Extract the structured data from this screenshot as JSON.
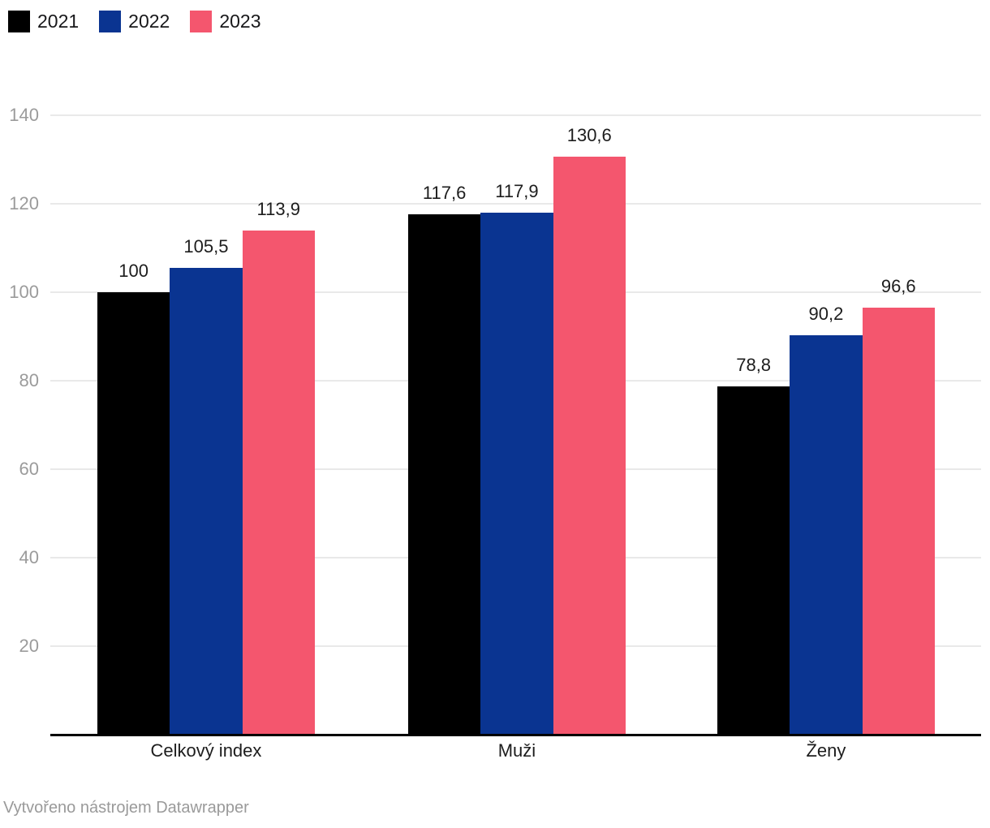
{
  "chart_data": {
    "type": "bar",
    "categories": [
      "Celkový index",
      "Muži",
      "Ženy"
    ],
    "series": [
      {
        "name": "2021",
        "color": "#000000",
        "values": [
          100,
          117.6,
          78.8
        ]
      },
      {
        "name": "2022",
        "color": "#0a3491",
        "values": [
          105.5,
          117.9,
          90.2
        ]
      },
      {
        "name": "2023",
        "color": "#f4566e",
        "values": [
          113.9,
          130.6,
          96.6
        ]
      }
    ],
    "value_labels": [
      "100",
      "117,6",
      "78,8",
      "105,5",
      "117,9",
      "90,2",
      "113,9",
      "130,6",
      "96,6"
    ],
    "decimal_separator": ",",
    "title": "",
    "xlabel": "",
    "ylabel": "",
    "ylim": [
      0,
      140
    ],
    "yticks": [
      20,
      40,
      60,
      80,
      100,
      120,
      140
    ],
    "grid": "horizontal",
    "legend_position": "top-left",
    "bar_grouping": "grouped"
  },
  "colors": {
    "background": "#ffffff",
    "gridline": "#e9e9e9",
    "axis_tick_text": "#9b9b9b",
    "value_label_text": "#1d1d1d",
    "category_label_text": "#1d1d1d",
    "baseline": "#000000",
    "footer_text": "#9a9a9a"
  },
  "footer": {
    "attribution": "Vytvořeno nástrojem Datawrapper"
  }
}
